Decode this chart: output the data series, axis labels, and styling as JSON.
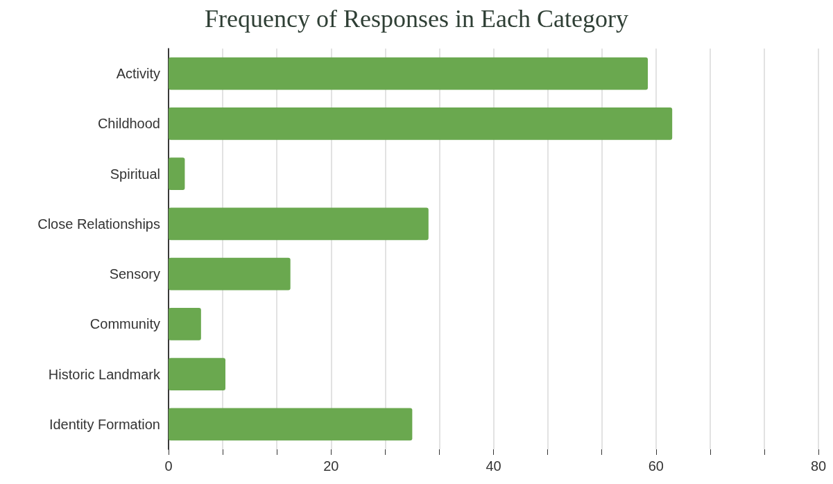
{
  "chart_data": {
    "type": "bar",
    "orientation": "horizontal",
    "title": "Frequency of Responses in Each Category",
    "categories": [
      "Activity",
      "Childhood",
      "Spiritual",
      "Close Relationships",
      "Sensory",
      "Community",
      "Historic Landmark",
      "Identity Formation"
    ],
    "values": [
      59,
      62,
      2,
      32,
      15,
      4,
      7,
      30
    ],
    "color": "#6aa84f",
    "xlim": [
      0,
      80
    ],
    "xticks": [
      0,
      {
        "value": 6.667,
        "label": null
      },
      {
        "value": 13.333,
        "label": null
      },
      20,
      {
        "value": 26.667,
        "label": null
      },
      {
        "value": 33.333,
        "label": null
      },
      40,
      {
        "value": 46.667,
        "label": null
      },
      {
        "value": 53.333,
        "label": null
      },
      60,
      {
        "value": 66.667,
        "label": null
      },
      {
        "value": 73.333,
        "label": null
      },
      80
    ],
    "grid": "x"
  }
}
